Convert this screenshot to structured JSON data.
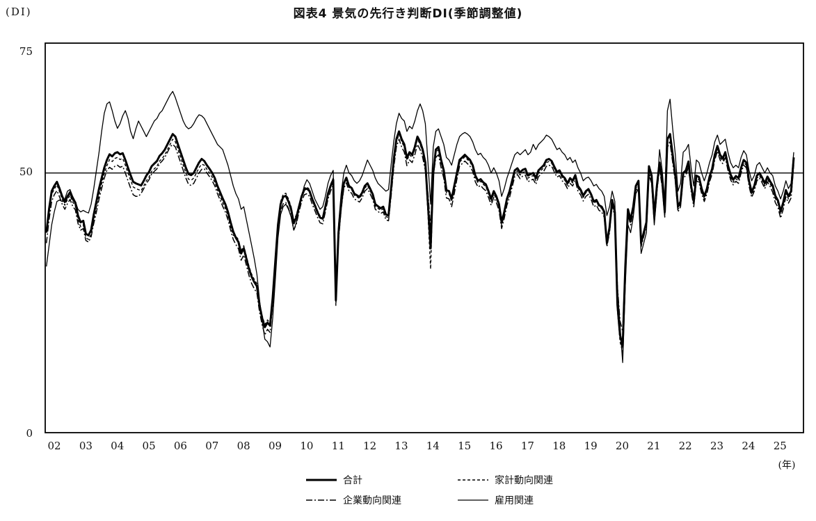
{
  "title": "図表4 景気の先行き判断DI(季節調整値)",
  "axis": {
    "y_unit": "(DI)",
    "y_ticks": [
      75,
      50,
      0
    ],
    "x_unit": "(年)",
    "x_ticks": [
      "02",
      "03",
      "04",
      "05",
      "06",
      "07",
      "08",
      "09",
      "10",
      "11",
      "12",
      "13",
      "14",
      "15",
      "16",
      "17",
      "18",
      "19",
      "20",
      "21",
      "22",
      "23",
      "24",
      "25"
    ],
    "reference_line": 50
  },
  "legend": [
    {
      "label": "合計",
      "style": "thick-solid"
    },
    {
      "label": "家計動向関連",
      "style": "dashed"
    },
    {
      "label": "企業動向関連",
      "style": "dash-dot"
    },
    {
      "label": "雇用関連",
      "style": "thin-solid"
    }
  ],
  "colors": {
    "line": "#000000",
    "background": "#ffffff"
  },
  "chart_data": {
    "type": "line",
    "title": "図表4 景気の先行き判断DI(季節調整値)",
    "x_start": "2002-01",
    "x_end": "2025-09",
    "x_frequency": "monthly",
    "ylabel": "DI",
    "ylim": [
      0,
      75
    ],
    "gridlines": [
      50
    ],
    "legend_position": "bottom",
    "series": [
      {
        "name": "合計",
        "line": "thick-solid",
        "values": [
          38.5,
          43.0,
          46.5,
          47.5,
          48.3,
          47.0,
          45.5,
          44.4,
          45.5,
          46.3,
          45.0,
          44.3,
          41.8,
          40.5,
          40.8,
          38.3,
          38.0,
          39.0,
          42.0,
          44.5,
          47.0,
          49.0,
          51.0,
          52.5,
          53.6,
          53.2,
          53.8,
          54.0,
          53.6,
          53.8,
          52.5,
          51.0,
          49.6,
          48.3,
          48.0,
          47.8,
          47.6,
          48.5,
          49.5,
          50.2,
          51.3,
          51.8,
          52.3,
          53.3,
          53.8,
          54.5,
          55.5,
          56.5,
          57.5,
          57.0,
          55.5,
          54.0,
          52.5,
          51.0,
          49.8,
          49.6,
          50.0,
          51.0,
          52.0,
          52.7,
          52.3,
          51.5,
          50.8,
          50.0,
          49.0,
          47.5,
          46.3,
          45.1,
          44.0,
          42.5,
          40.5,
          38.7,
          37.5,
          36.7,
          34.5,
          35.5,
          33.5,
          31.5,
          30.0,
          29.0,
          28.2,
          24.5,
          22.0,
          20.3,
          21.2,
          20.6,
          26.0,
          33.0,
          40.0,
          44.0,
          45.4,
          45.6,
          44.5,
          43.0,
          40.3,
          41.5,
          43.5,
          45.5,
          46.8,
          47.0,
          46.5,
          45.0,
          43.8,
          42.5,
          41.4,
          41.2,
          43.5,
          46.0,
          47.5,
          48.7,
          25.5,
          38.5,
          44.0,
          48.0,
          49.1,
          47.5,
          47.1,
          46.0,
          45.7,
          45.4,
          46.2,
          47.5,
          48.0,
          47.0,
          45.9,
          44.0,
          43.6,
          43.2,
          43.5,
          42.0,
          41.8,
          47.0,
          52.5,
          56.5,
          58.0,
          56.5,
          55.5,
          52.9,
          54.0,
          53.5,
          55.0,
          57.0,
          56.0,
          54.5,
          52.0,
          44.0,
          35.5,
          50.0,
          54.5,
          55.0,
          52.5,
          50.5,
          46.7,
          46.5,
          45.0,
          47.5,
          50.0,
          52.5,
          53.0,
          53.5,
          53.0,
          52.5,
          51.5,
          49.5,
          48.5,
          48.8,
          48.2,
          47.8,
          46.5,
          45.0,
          46.5,
          45.5,
          44.0,
          40.5,
          42.5,
          45.0,
          46.5,
          48.5,
          50.5,
          50.9,
          50.1,
          50.6,
          50.8,
          49.5,
          49.8,
          50.0,
          49.0,
          50.5,
          51.0,
          51.5,
          52.5,
          52.7,
          52.3,
          51.2,
          50.2,
          50.5,
          49.5,
          49.0,
          48.0,
          49.0,
          48.5,
          49.6,
          47.5,
          46.8,
          45.6,
          46.5,
          46.9,
          45.9,
          44.5,
          44.8,
          43.8,
          43.5,
          42.5,
          36.5,
          39.5,
          44.8,
          42.5,
          24.6,
          18.8,
          16.6,
          32.0,
          43.0,
          41.0,
          43.5,
          47.5,
          48.5,
          36.5,
          38.5,
          40.5,
          51.3,
          49.5,
          41.7,
          47.5,
          52.0,
          48.5,
          42.5,
          56.5,
          57.5,
          53.5,
          49.5,
          43.5,
          44.5,
          50.0,
          50.5,
          52.2,
          47.5,
          44.5,
          49.5,
          49.2,
          47.0,
          45.5,
          47.0,
          49.3,
          50.8,
          53.5,
          55.2,
          53.5,
          52.8,
          54.0,
          51.5,
          49.7,
          48.7,
          49.4,
          49.0,
          51.0,
          52.5,
          52.0,
          48.5,
          46.3,
          47.5,
          49.5,
          50.0,
          49.1,
          48.0,
          49.3,
          48.4,
          47.6,
          45.6,
          44.7,
          42.6,
          44.3,
          46.7,
          45.5,
          46.5,
          53.0
        ]
      },
      {
        "name": "家計動向関連",
        "line": "dashed",
        "values": [
          38.8,
          42.4,
          45.9,
          46.9,
          47.7,
          46.4,
          44.9,
          43.8,
          44.9,
          45.7,
          44.4,
          43.7,
          41.0,
          39.7,
          40.0,
          37.5,
          37.2,
          38.2,
          41.0,
          43.5,
          45.9,
          47.9,
          49.9,
          51.4,
          52.6,
          52.2,
          52.8,
          53.0,
          52.6,
          52.8,
          51.5,
          50.0,
          48.6,
          47.3,
          47.0,
          46.8,
          46.6,
          47.5,
          48.5,
          49.2,
          50.3,
          50.8,
          51.3,
          52.3,
          52.8,
          53.5,
          54.5,
          55.5,
          56.5,
          56.0,
          54.5,
          53.0,
          51.5,
          50.0,
          48.8,
          48.6,
          49.0,
          50.0,
          51.0,
          51.7,
          51.5,
          50.7,
          50.0,
          49.2,
          48.2,
          46.7,
          45.5,
          44.3,
          43.2,
          41.7,
          39.7,
          38.0,
          37.9,
          37.1,
          35.0,
          36.0,
          34.0,
          32.0,
          30.5,
          29.5,
          28.7,
          25.0,
          22.5,
          20.8,
          21.7,
          21.1,
          26.5,
          33.5,
          40.5,
          44.5,
          45.9,
          46.1,
          45.0,
          43.5,
          40.8,
          42.0,
          43.8,
          45.8,
          47.1,
          47.3,
          46.8,
          45.3,
          44.1,
          42.8,
          41.7,
          41.5,
          43.8,
          46.3,
          47.8,
          49.0,
          24.5,
          37.5,
          43.5,
          47.7,
          48.8,
          47.2,
          46.8,
          45.7,
          45.4,
          45.1,
          45.8,
          47.1,
          47.6,
          46.6,
          45.5,
          43.6,
          43.2,
          42.8,
          43.1,
          41.6,
          41.4,
          46.6,
          52.0,
          56.0,
          57.5,
          56.0,
          55.0,
          52.4,
          53.5,
          53.0,
          54.5,
          56.5,
          55.5,
          54.0,
          51.0,
          42.0,
          31.5,
          49.0,
          54.0,
          54.5,
          52.0,
          50.0,
          46.2,
          46.0,
          44.5,
          47.0,
          49.6,
          52.1,
          52.6,
          53.1,
          52.6,
          52.1,
          51.1,
          49.1,
          48.1,
          48.4,
          47.8,
          47.4,
          46.0,
          44.5,
          46.0,
          45.0,
          43.5,
          39.9,
          42.0,
          44.5,
          46.0,
          48.0,
          50.0,
          50.4,
          49.6,
          50.1,
          50.3,
          49.0,
          49.3,
          49.5,
          48.5,
          50.0,
          50.5,
          51.0,
          52.0,
          52.2,
          51.9,
          50.8,
          49.8,
          50.1,
          49.1,
          48.6,
          47.6,
          48.6,
          48.1,
          49.2,
          47.1,
          46.4,
          45.3,
          46.2,
          46.6,
          45.6,
          44.2,
          44.5,
          43.5,
          43.2,
          42.2,
          36.1,
          39.2,
          44.5,
          42.2,
          23.5,
          17.5,
          15.5,
          31.0,
          42.5,
          40.5,
          43.0,
          47.0,
          48.0,
          36.0,
          38.0,
          40.0,
          50.8,
          49.0,
          41.0,
          47.0,
          51.3,
          47.8,
          41.8,
          55.5,
          56.0,
          52.5,
          48.8,
          43.0,
          44.0,
          49.5,
          50.0,
          51.7,
          47.0,
          44.0,
          49.0,
          48.7,
          46.5,
          45.0,
          46.5,
          48.8,
          50.3,
          53.0,
          54.7,
          53.0,
          52.3,
          53.5,
          51.0,
          49.2,
          48.2,
          48.9,
          48.5,
          50.5,
          52.0,
          51.5,
          48.0,
          45.8,
          47.0,
          49.0,
          49.5,
          48.6,
          47.5,
          48.8,
          47.9,
          47.1,
          45.1,
          44.2,
          42.1,
          43.8,
          46.2,
          45.0,
          46.0,
          52.5
        ]
      },
      {
        "name": "企業動向関連",
        "line": "dash-dot",
        "values": [
          36.5,
          41.0,
          44.5,
          45.8,
          46.6,
          45.4,
          44.0,
          43.0,
          44.1,
          44.9,
          43.6,
          42.9,
          40.3,
          39.0,
          39.3,
          37.0,
          36.7,
          37.7,
          40.3,
          42.5,
          45.0,
          47.0,
          49.0,
          50.5,
          51.1,
          50.7,
          51.3,
          51.5,
          51.1,
          51.3,
          50.0,
          48.5,
          47.1,
          45.8,
          45.5,
          45.5,
          46.1,
          47.0,
          48.0,
          48.7,
          49.8,
          50.3,
          50.8,
          51.8,
          52.3,
          53.0,
          54.0,
          55.0,
          55.5,
          55.0,
          53.5,
          52.0,
          50.5,
          49.0,
          47.8,
          47.6,
          48.0,
          49.0,
          50.0,
          50.7,
          50.8,
          50.0,
          49.3,
          48.5,
          47.5,
          46.0,
          44.8,
          43.6,
          42.5,
          41.0,
          39.0,
          37.2,
          36.2,
          35.4,
          33.2,
          34.2,
          32.2,
          30.2,
          28.7,
          27.7,
          26.9,
          23.2,
          20.7,
          18.8,
          19.9,
          19.3,
          24.7,
          31.7,
          38.7,
          42.7,
          44.1,
          44.3,
          43.2,
          41.7,
          39.0,
          40.2,
          42.5,
          44.5,
          45.8,
          46.0,
          45.5,
          44.0,
          42.8,
          41.5,
          40.4,
          40.2,
          42.5,
          45.0,
          46.5,
          47.7,
          25.0,
          37.0,
          43.0,
          47.0,
          48.1,
          46.5,
          46.1,
          45.0,
          44.7,
          44.4,
          45.2,
          46.5,
          47.0,
          46.0,
          44.9,
          43.0,
          42.6,
          42.2,
          42.5,
          41.0,
          40.8,
          45.5,
          51.0,
          55.0,
          56.5,
          55.0,
          54.0,
          51.4,
          52.5,
          52.0,
          53.5,
          55.5,
          54.5,
          53.0,
          50.5,
          46.0,
          39.5,
          49.5,
          53.0,
          53.5,
          51.0,
          49.0,
          45.2,
          45.0,
          43.5,
          46.0,
          48.8,
          51.3,
          51.8,
          52.3,
          51.8,
          51.3,
          50.3,
          48.3,
          47.3,
          47.6,
          47.0,
          46.6,
          45.3,
          43.8,
          45.3,
          44.3,
          42.8,
          39.3,
          41.3,
          43.8,
          45.3,
          47.3,
          49.3,
          49.7,
          48.9,
          49.4,
          49.6,
          48.3,
          48.6,
          48.8,
          47.8,
          49.3,
          49.8,
          50.3,
          51.3,
          51.5,
          51.3,
          50.2,
          49.2,
          49.5,
          48.5,
          48.0,
          47.0,
          48.0,
          47.5,
          48.6,
          46.5,
          45.8,
          44.6,
          45.5,
          45.9,
          44.9,
          43.5,
          43.8,
          42.8,
          42.5,
          41.5,
          35.8,
          38.5,
          43.8,
          41.5,
          28.0,
          21.5,
          19.5,
          33.0,
          42.0,
          40.0,
          42.5,
          46.5,
          47.5,
          35.8,
          37.8,
          39.8,
          50.0,
          48.5,
          40.5,
          46.5,
          50.8,
          47.3,
          41.5,
          55.0,
          55.8,
          52.0,
          48.3,
          42.5,
          43.5,
          49.0,
          49.5,
          51.2,
          46.5,
          43.5,
          48.5,
          48.2,
          46.0,
          44.5,
          46.0,
          48.3,
          49.8,
          52.5,
          54.2,
          52.5,
          51.8,
          53.0,
          50.5,
          48.7,
          47.7,
          48.4,
          48.0,
          50.0,
          51.5,
          51.0,
          47.5,
          45.3,
          46.5,
          48.5,
          49.0,
          48.1,
          47.0,
          48.3,
          47.4,
          46.3,
          44.3,
          43.4,
          41.3,
          43.0,
          45.4,
          44.2,
          45.2,
          51.5
        ]
      },
      {
        "name": "雇用関連",
        "line": "thin-solid",
        "values": [
          32.0,
          36.0,
          40.0,
          42.5,
          44.5,
          44.8,
          44.5,
          45.0,
          46.5,
          46.8,
          45.5,
          44.5,
          43.0,
          42.5,
          42.8,
          42.5,
          42.3,
          44.0,
          47.0,
          50.5,
          54.0,
          58.0,
          61.5,
          63.3,
          63.7,
          62.0,
          60.0,
          58.6,
          59.5,
          61.0,
          62.0,
          60.5,
          58.0,
          56.6,
          58.5,
          60.0,
          59.0,
          58.0,
          57.0,
          58.0,
          59.0,
          60.0,
          60.5,
          61.5,
          62.0,
          63.0,
          64.0,
          65.0,
          65.7,
          64.5,
          63.0,
          61.5,
          60.0,
          59.0,
          58.5,
          58.8,
          59.5,
          60.5,
          61.2,
          61.0,
          60.5,
          59.5,
          58.5,
          57.5,
          56.5,
          55.5,
          55.0,
          54.5,
          53.0,
          51.5,
          49.5,
          47.5,
          46.0,
          45.0,
          43.0,
          43.5,
          41.0,
          38.5,
          36.0,
          33.5,
          30.5,
          25.5,
          21.5,
          18.0,
          17.5,
          16.5,
          22.0,
          29.5,
          37.5,
          42.0,
          43.5,
          44.0,
          43.0,
          41.5,
          39.0,
          40.5,
          43.0,
          45.5,
          47.5,
          48.7,
          48.0,
          46.5,
          45.0,
          44.0,
          43.0,
          43.5,
          45.5,
          48.0,
          49.5,
          50.5,
          28.0,
          40.0,
          46.0,
          50.0,
          51.5,
          50.0,
          49.5,
          48.5,
          48.0,
          48.5,
          49.5,
          51.0,
          52.5,
          51.5,
          50.5,
          49.0,
          48.0,
          47.5,
          47.0,
          46.5,
          46.8,
          51.5,
          56.0,
          59.5,
          61.5,
          60.5,
          60.0,
          58.0,
          59.0,
          58.5,
          60.0,
          62.0,
          63.3,
          62.0,
          59.5,
          52.0,
          44.0,
          55.0,
          58.0,
          58.5,
          57.0,
          55.5,
          53.0,
          52.5,
          51.5,
          53.5,
          55.5,
          57.0,
          57.5,
          57.8,
          57.5,
          57.0,
          56.0,
          54.5,
          53.5,
          53.8,
          53.0,
          52.5,
          51.5,
          50.0,
          51.0,
          50.0,
          48.5,
          45.5,
          47.0,
          49.0,
          50.5,
          52.0,
          53.5,
          54.0,
          53.5,
          54.0,
          54.5,
          53.5,
          54.0,
          55.5,
          54.5,
          55.5,
          56.0,
          56.5,
          57.3,
          57.0,
          56.5,
          55.5,
          54.5,
          54.8,
          54.0,
          53.5,
          52.5,
          53.0,
          52.0,
          52.5,
          51.0,
          50.0,
          48.5,
          49.0,
          49.2,
          48.5,
          47.5,
          47.8,
          47.0,
          46.5,
          45.5,
          41.8,
          43.5,
          46.5,
          44.5,
          28.0,
          20.5,
          13.5,
          28.5,
          40.0,
          38.5,
          41.5,
          46.0,
          47.0,
          34.5,
          36.5,
          38.5,
          49.5,
          48.0,
          40.0,
          46.0,
          54.5,
          50.5,
          44.5,
          62.0,
          64.2,
          58.5,
          53.5,
          46.5,
          48.0,
          54.0,
          54.5,
          55.5,
          51.0,
          47.5,
          52.5,
          52.0,
          50.0,
          48.5,
          50.0,
          52.0,
          53.5,
          56.0,
          57.3,
          55.5,
          56.0,
          56.5,
          54.0,
          52.0,
          51.0,
          51.5,
          51.0,
          53.0,
          54.3,
          53.5,
          50.5,
          48.5,
          49.5,
          51.5,
          52.0,
          51.0,
          50.0,
          51.0,
          50.0,
          49.5,
          47.5,
          46.5,
          45.0,
          46.5,
          48.5,
          47.0,
          48.0,
          54.0
        ]
      }
    ]
  }
}
